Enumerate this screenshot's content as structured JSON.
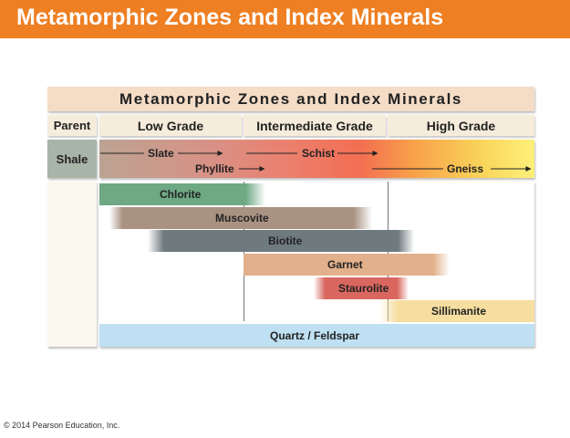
{
  "slide": {
    "title": "Metamorphic Zones and Index Minerals",
    "copyright": "© 2014 Pearson Education, Inc.",
    "accent_color": "#ee7f22"
  },
  "diagram": {
    "title": "Metamorphic Zones and Index Minerals",
    "parent_header": "Parent",
    "grades": [
      "Low Grade",
      "Intermediate Grade",
      "High Grade"
    ],
    "parent_rock": "Shale",
    "rocks": [
      "Slate",
      "Phyllite",
      "Schist",
      "Gneiss"
    ],
    "minerals": [
      {
        "name": "Chlorite",
        "color": "#6ea884"
      },
      {
        "name": "Muscovite",
        "color": "#a99282"
      },
      {
        "name": "Biotite",
        "color": "#6f7a7f"
      },
      {
        "name": "Garnet",
        "color": "#e2b08b"
      },
      {
        "name": "Staurolite",
        "color": "#d9675f"
      },
      {
        "name": "Sillimanite",
        "color": "#f6dea0"
      },
      {
        "name": "Quartz / Feldspar",
        "color": "#bfe0f3"
      }
    ]
  }
}
